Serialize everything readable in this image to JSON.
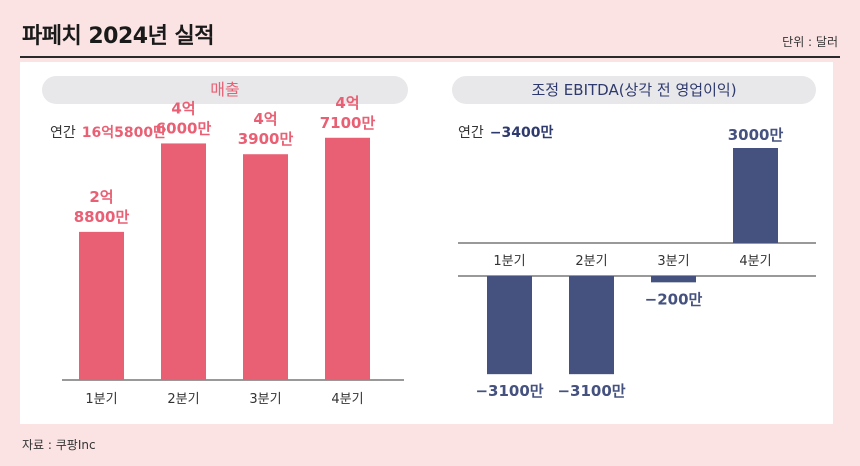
{
  "header": {
    "title": "파페치 2024년 실적",
    "unit": "단위 : 달러"
  },
  "footer": {
    "source": "자료 : 쿠팡Inc"
  },
  "colors": {
    "revenue": "#e95f73",
    "ebitda": "#45527f",
    "background": "#fbe3e3"
  },
  "chart_data": [
    {
      "type": "bar",
      "title": "매출",
      "annual_label": "연간",
      "annual_value": "16억5800만",
      "categories": [
        "1분기",
        "2분기",
        "3분기",
        "4분기"
      ],
      "values": [
        288000000,
        460000000,
        439000000,
        471000000
      ],
      "data_labels": [
        [
          "2억",
          "8800만"
        ],
        [
          "4억",
          "6000만"
        ],
        [
          "4억",
          "3900만"
        ],
        [
          "4억",
          "7100만"
        ]
      ],
      "ylim": [
        0,
        560000000
      ],
      "grid": false
    },
    {
      "type": "bar",
      "title": "조정 EBITDA(상각 전 영업이익)",
      "annual_label": "연간",
      "annual_value": "−3400만",
      "categories": [
        "1분기",
        "2분기",
        "3분기",
        "4분기"
      ],
      "values": [
        -31000000,
        -31000000,
        -2000000,
        30000000
      ],
      "data_labels": [
        "−3100만",
        "−3100만",
        "−200만",
        "3000만"
      ],
      "ylim": [
        -40000000,
        40000000
      ],
      "grid": false
    }
  ]
}
